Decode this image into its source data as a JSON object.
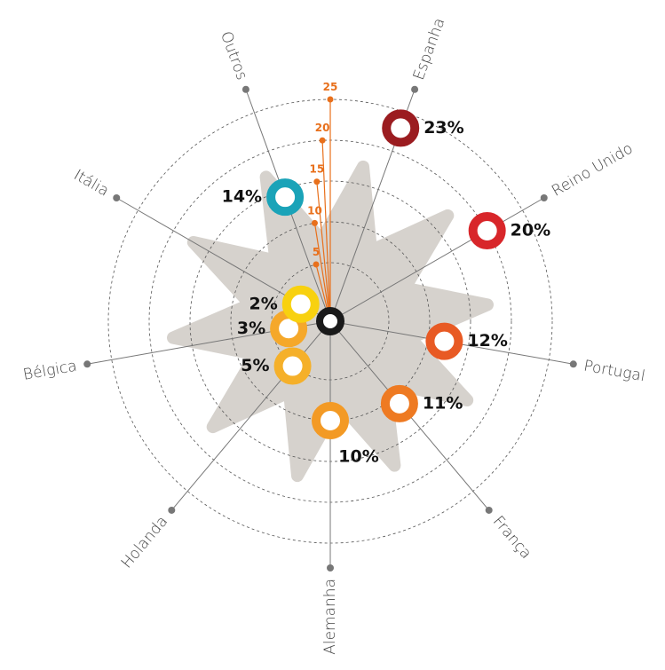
{
  "chart_data": {
    "type": "radial",
    "categories": [
      "Espanha",
      "Reino Unido",
      "Portugal",
      "França",
      "Alemanha",
      "Holanda",
      "Bélgica",
      "Itália",
      "Outros"
    ],
    "values": [
      23,
      20,
      12,
      11,
      10,
      5,
      3,
      2,
      14
    ],
    "value_labels": [
      "23%",
      "20%",
      "12%",
      "11%",
      "10%",
      "5%",
      "3%",
      "2%",
      "14%"
    ],
    "colors": [
      "#9b1c20",
      "#d8262a",
      "#e85a24",
      "#ee7a22",
      "#f39a25",
      "#f5b02a",
      "#f5a82a",
      "#f8d10f",
      "#1aa3b8"
    ],
    "ylim": [
      0,
      25
    ],
    "yticks": [
      5,
      10,
      15,
      20,
      25
    ],
    "grid": true
  }
}
